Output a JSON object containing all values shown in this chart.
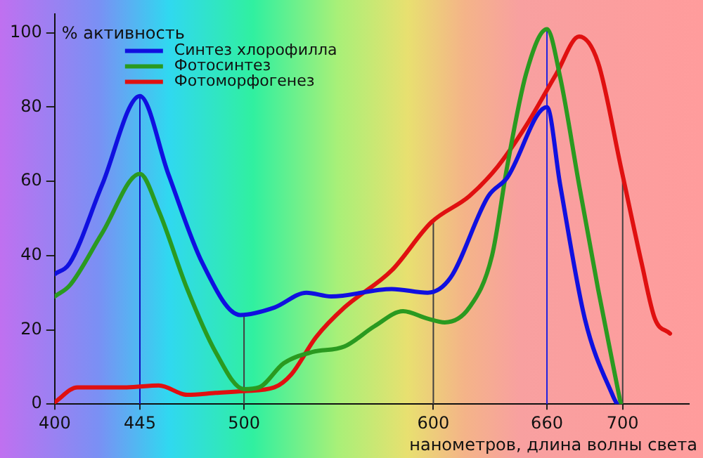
{
  "chart_data": {
    "type": "line",
    "ylabel": "% активность",
    "xlabel": "нанометров, длина волны света",
    "xlim": [
      400,
      735
    ],
    "ylim": [
      0,
      105
    ],
    "xticks": [
      400,
      445,
      500,
      600,
      660,
      700
    ],
    "yticks": [
      0,
      20,
      40,
      60,
      80,
      100
    ],
    "grid": false,
    "legend": "top left",
    "marker": "none",
    "line_style": "solid",
    "series": [
      {
        "name": "Синтез хлорофилла",
        "color": "#1010e0",
        "x": [
          400,
          408,
          425,
          445,
          460,
          478,
          498,
          516,
          533,
          546,
          578,
          597,
          609,
          629,
          639,
          660,
          667,
          680,
          695,
          697
        ],
        "values": [
          35,
          38,
          59,
          83,
          62,
          38,
          24,
          26,
          30,
          29,
          31,
          30,
          34,
          56,
          61,
          80,
          59,
          23,
          2,
          0
        ]
      },
      {
        "name": "Фотосинтез",
        "color": "#2a9a20",
        "x": [
          400,
          408,
          425,
          445,
          455,
          470,
          485,
          500,
          508,
          521,
          536,
          553,
          569,
          584,
          597,
          606,
          619,
          631,
          639,
          649,
          660,
          667,
          677,
          687,
          699
        ],
        "values": [
          29,
          32,
          46,
          62,
          52,
          31,
          14,
          4,
          4.5,
          11,
          14,
          15.5,
          21,
          25,
          23,
          22,
          26,
          40,
          64,
          89,
          101,
          88,
          59,
          31,
          0
        ]
      },
      {
        "name": "Фотоморфогенез",
        "color": "#e01010",
        "x": [
          400,
          412,
          438,
          455,
          470,
          485,
          500,
          516,
          525,
          538,
          553,
          578,
          599,
          619,
          634,
          649,
          665,
          677,
          687,
          699,
          710,
          717,
          725
        ],
        "values": [
          0.5,
          4.5,
          4.5,
          5,
          2.5,
          3,
          3.5,
          4.5,
          8,
          18,
          26,
          36,
          49,
          56,
          64,
          75,
          89,
          99,
          92,
          64,
          38,
          23,
          19
        ]
      }
    ],
    "ref_lines": [
      {
        "axis": "x",
        "value": 445,
        "color": "#1010c0"
      },
      {
        "axis": "x",
        "value": 500,
        "color": "#404040"
      },
      {
        "axis": "x",
        "value": 600,
        "color": "#404040"
      },
      {
        "axis": "x",
        "value": 660,
        "color": "#2020e0"
      },
      {
        "axis": "x",
        "value": 700,
        "color": "#404040"
      }
    ]
  }
}
